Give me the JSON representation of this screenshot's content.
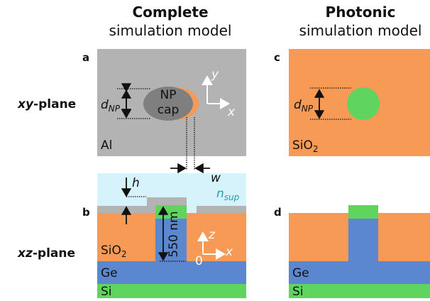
{
  "columns": [
    {
      "title": "Complete",
      "subtitle": "simulation model"
    },
    {
      "title": "Photonic",
      "subtitle": "simulation model"
    }
  ],
  "rows": [
    {
      "plane": "xy",
      "suffix": "-plane"
    },
    {
      "plane": "xz",
      "suffix": "-plane"
    }
  ],
  "panel_labels": [
    "a",
    "b",
    "c",
    "d"
  ],
  "panel_a": {
    "diameter_symbol": "d",
    "diameter_subscript": "NP",
    "particle": [
      "NP",
      "cap"
    ],
    "material": "Al",
    "axes": [
      "y",
      "x"
    ]
  },
  "panel_b": {
    "height_symbol": "h",
    "width_symbol": "w",
    "medium_symbol": "n",
    "medium_subscript": "sup",
    "height_label": "550 nm",
    "oxide": "SiO",
    "oxide_subscript": "2",
    "axes": [
      "z",
      "x"
    ],
    "origin": "0",
    "layers": [
      "Ge",
      "Si"
    ]
  },
  "panel_c": {
    "diameter_symbol": "d",
    "diameter_subscript": "NP",
    "oxide": "SiO",
    "oxide_subscript": "2"
  },
  "panel_d": {
    "layers": [
      "Ge",
      "Si"
    ]
  }
}
